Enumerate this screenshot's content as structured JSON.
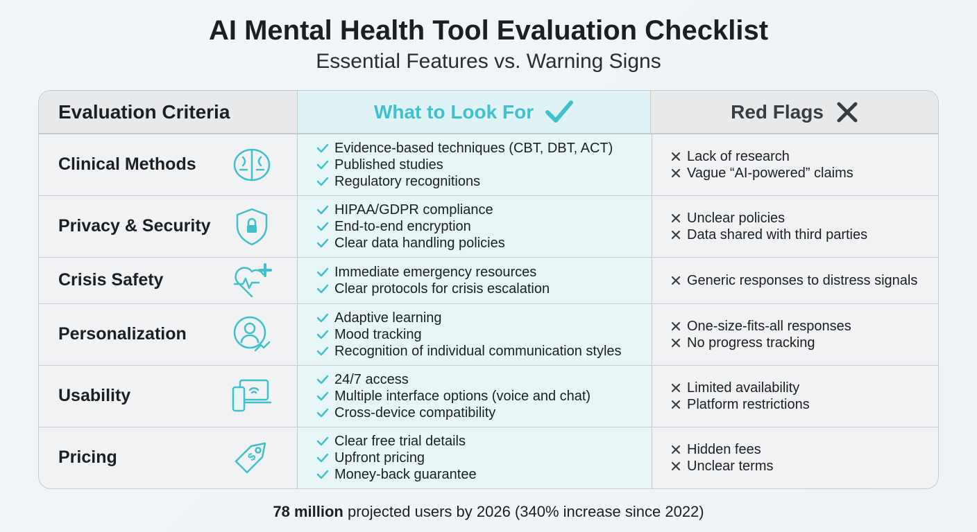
{
  "header": {
    "title": "AI Mental Health Tool Evaluation Checklist",
    "subtitle": "Essential Features vs. Warning Signs"
  },
  "table": {
    "columns": [
      "Evaluation Criteria",
      "What to Look For",
      "Red Flags"
    ],
    "rows": [
      {
        "criterion": "Clinical Methods",
        "look_for": [
          "Evidence-based techniques (CBT, DBT, ACT)",
          "Published studies",
          "Regulatory recognitions"
        ],
        "red_flags": [
          "Lack of research",
          "Vague “AI-powered” claims"
        ]
      },
      {
        "criterion": "Privacy & Security",
        "look_for": [
          "HIPAA/GDPR compliance",
          "End-to-end encryption",
          "Clear data handling policies"
        ],
        "red_flags": [
          "Unclear policies",
          "Data shared with third parties"
        ]
      },
      {
        "criterion": "Crisis Safety",
        "look_for": [
          "Immediate emergency resources",
          "Clear protocols for crisis escalation"
        ],
        "red_flags": [
          "Generic responses to distress signals"
        ]
      },
      {
        "criterion": "Personalization",
        "look_for": [
          "Adaptive learning",
          "Mood tracking",
          "Recognition of individual communication styles"
        ],
        "red_flags": [
          "One-size-fits-all responses",
          "No progress tracking"
        ]
      },
      {
        "criterion": "Usability",
        "look_for": [
          "24/7 access",
          "Multiple interface options (voice and chat)",
          "Cross-device compatibility"
        ],
        "red_flags": [
          "Limited availability",
          "Platform restrictions"
        ]
      },
      {
        "criterion": "Pricing",
        "look_for": [
          "Clear free trial details",
          "Upfront pricing",
          "Money-back guarantee"
        ],
        "red_flags": [
          "Hidden fees",
          "Unclear terms"
        ]
      }
    ]
  },
  "footer": {
    "highlight": "78 million",
    "text": "projected users by 2026 (340% increase since 2022)"
  }
}
